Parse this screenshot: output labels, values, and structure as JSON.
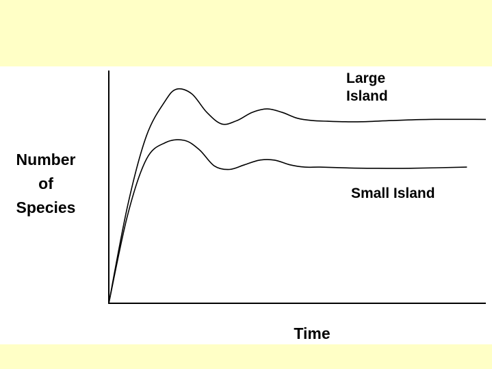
{
  "colors": {
    "band": "#ffffc6",
    "plot_background": "#ffffff",
    "ink": "#000000"
  },
  "chart_data": {
    "type": "line",
    "title": "",
    "xlabel": "Time",
    "ylabel": [
      "Number",
      "of",
      "Species"
    ],
    "xlim": [
      0,
      100
    ],
    "ylim": [
      0,
      100
    ],
    "grid": false,
    "x_ticks": [],
    "y_ticks": [],
    "legend": "none",
    "series": [
      {
        "name": "Large Island",
        "label_lines": [
          "Large",
          "Island"
        ],
        "x": [
          0,
          5,
          10,
          15,
          18,
          22,
          26,
          30,
          34,
          38,
          42,
          46,
          50,
          54,
          58,
          62,
          67,
          75,
          85,
          100
        ],
        "y": [
          0,
          42,
          72,
          87,
          92,
          90,
          82,
          77,
          78.5,
          82,
          83.5,
          82,
          79.5,
          78.5,
          78.2,
          78,
          78,
          78.5,
          79,
          79
        ]
      },
      {
        "name": "Small Island",
        "label_lines": [
          "Small Island"
        ],
        "x": [
          0,
          5,
          10,
          15,
          20,
          24,
          28,
          32,
          36,
          40,
          44,
          48,
          52,
          56,
          62,
          70,
          80,
          95
        ],
        "y": [
          0,
          38,
          62,
          69,
          70,
          66,
          59,
          57.5,
          59.5,
          61.5,
          61.5,
          59.5,
          58.5,
          58.5,
          58.2,
          58,
          58,
          58.5
        ]
      }
    ]
  }
}
